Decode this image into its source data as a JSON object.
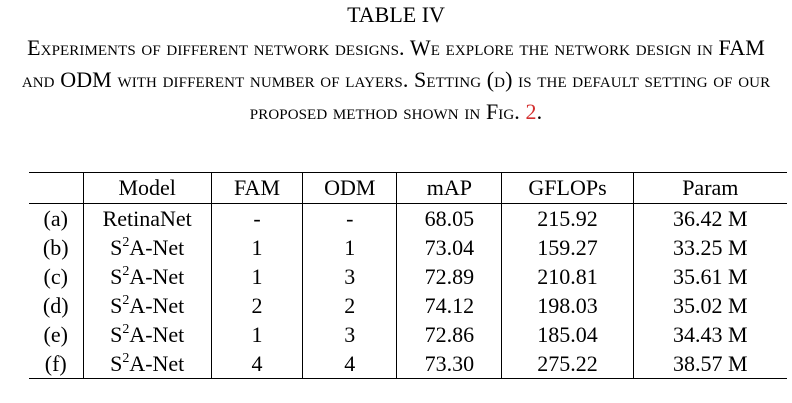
{
  "table_label": "TABLE IV",
  "caption": {
    "text": "Experiments of different network designs. We explore the network design in FAM and ODM with different number of layers. Setting (d) is the default setting of our proposed method shown in Fig.",
    "fig_ref": "2",
    "end": "."
  },
  "table": {
    "headers": [
      "",
      "Model",
      "FAM",
      "ODM",
      "mAP",
      "GFLOPs",
      "Param"
    ],
    "rows": [
      {
        "setting": "(a)",
        "model": "RetinaNet",
        "fam": "-",
        "odm": "-",
        "map": "68.05",
        "gflops": "215.92",
        "param": "36.42 M"
      },
      {
        "setting": "(b)",
        "model_base": "S",
        "model_sup": "2",
        "model_rest": "A-Net",
        "fam": "1",
        "odm": "1",
        "map": "73.04",
        "gflops": "159.27",
        "param": "33.25 M"
      },
      {
        "setting": "(c)",
        "model_base": "S",
        "model_sup": "2",
        "model_rest": "A-Net",
        "fam": "1",
        "odm": "3",
        "map": "72.89",
        "gflops": "210.81",
        "param": "35.61 M"
      },
      {
        "setting": "(d)",
        "model_base": "S",
        "model_sup": "2",
        "model_rest": "A-Net",
        "fam": "2",
        "odm": "2",
        "map": "74.12",
        "gflops": "198.03",
        "param": "35.02 M"
      },
      {
        "setting": "(e)",
        "model_base": "S",
        "model_sup": "2",
        "model_rest": "A-Net",
        "fam": "1",
        "odm": "3",
        "map": "72.86",
        "gflops": "185.04",
        "param": "34.43 M"
      },
      {
        "setting": "(f)",
        "model_base": "S",
        "model_sup": "2",
        "model_rest": "A-Net",
        "fam": "4",
        "odm": "4",
        "map": "73.30",
        "gflops": "275.22",
        "param": "38.57 M"
      }
    ]
  }
}
